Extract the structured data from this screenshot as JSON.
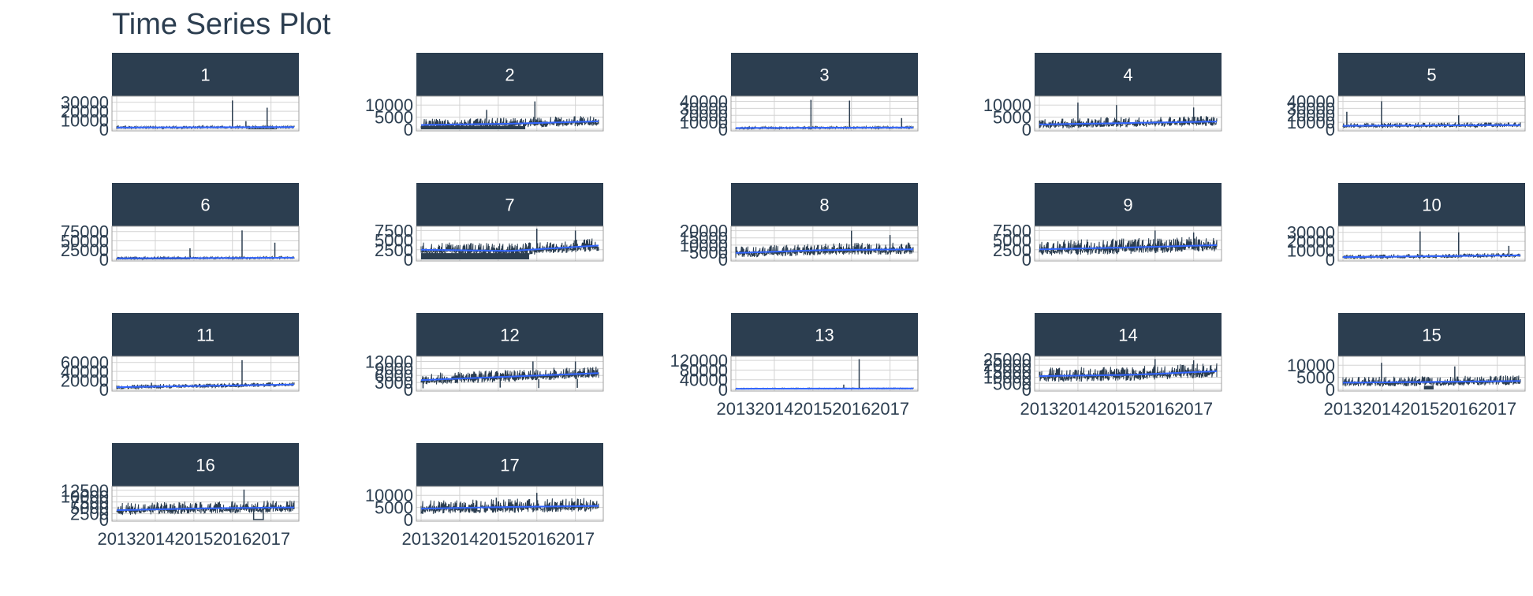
{
  "chart_data": {
    "type": "line",
    "title": "Time Series Plot",
    "xlabel": "",
    "ylabel": "",
    "grid": true,
    "x_tick_labels": [
      "2013",
      "2014",
      "2015",
      "2016",
      "2017"
    ],
    "x_range": [
      2013.0,
      2017.6
    ],
    "colors": {
      "strip": "#2c3e50",
      "series": "#2c3e50",
      "trend": "#3366ff",
      "grid": "#d3d3d3"
    },
    "panels": [
      {
        "label": "1",
        "yticks": [
          "0",
          "10000",
          "20000",
          "30000"
        ],
        "ylim": [
          0,
          35000
        ],
        "level": 1500,
        "trend": [
          2000,
          2200,
          2400
        ],
        "noise": 1200,
        "spikes": [
          [
            2016.0,
            32000
          ],
          [
            2016.9,
            24000
          ],
          [
            2016.35,
            9000
          ]
        ],
        "baseline_block": [
          2016.4,
          2017.15
        ]
      },
      {
        "label": "2",
        "yticks": [
          "0",
          "5000",
          "10000"
        ],
        "ylim": [
          0,
          13000
        ],
        "level": 2200,
        "trend": [
          1800,
          2300,
          3300
        ],
        "noise": 1800,
        "spikes": [
          [
            2014.7,
            8000
          ],
          [
            2015.95,
            11500
          ]
        ],
        "baseline_block": [
          2013.0,
          2015.7
        ]
      },
      {
        "label": "3",
        "yticks": [
          "0",
          "10000",
          "20000",
          "30000",
          "40000"
        ],
        "ylim": [
          0,
          45000
        ],
        "level": 1800,
        "trend": [
          1800,
          2200,
          2500
        ],
        "noise": 1300,
        "spikes": [
          [
            2014.95,
            42000
          ],
          [
            2015.95,
            41000
          ],
          [
            2017.3,
            16000
          ]
        ]
      },
      {
        "label": "4",
        "yticks": [
          "0",
          "5000",
          "10000"
        ],
        "ylim": [
          0,
          13000
        ],
        "level": 2400,
        "trend": [
          2000,
          2600,
          3200
        ],
        "noise": 1800,
        "spikes": [
          [
            2014.0,
            11000
          ],
          [
            2015.0,
            10000
          ],
          [
            2017.0,
            9000
          ]
        ]
      },
      {
        "label": "5",
        "yticks": [
          "0",
          "10000",
          "20000",
          "30000",
          "40000"
        ],
        "ylim": [
          0,
          45000
        ],
        "level": 5000,
        "trend": [
          5000,
          5500,
          6000
        ],
        "noise": 3000,
        "spikes": [
          [
            2014.0,
            40000
          ],
          [
            2013.1,
            25000
          ],
          [
            2016.0,
            20000
          ]
        ]
      },
      {
        "label": "6",
        "yticks": [
          "0",
          "25000",
          "50000",
          "75000"
        ],
        "ylim": [
          0,
          85000
        ],
        "level": 3000,
        "trend": [
          3000,
          3500,
          4500
        ],
        "noise": 2500,
        "spikes": [
          [
            2016.25,
            78000
          ],
          [
            2017.1,
            45000
          ],
          [
            2014.9,
            30000
          ]
        ],
        "baseline_block": [
          2013.0,
          2014.9
        ]
      },
      {
        "label": "7",
        "yticks": [
          "0",
          "2500",
          "5000",
          "7500"
        ],
        "ylim": [
          0,
          8200
        ],
        "level": 2700,
        "trend": [
          2500,
          2200,
          3600
        ],
        "noise": 1400,
        "spikes": [
          [
            2016.0,
            8000
          ],
          [
            2017.0,
            7500
          ]
        ],
        "baseline_block": [
          2013.0,
          2015.8
        ]
      },
      {
        "label": "8",
        "yticks": [
          "0",
          "5000",
          "10000",
          "15000",
          "20000"
        ],
        "ylim": [
          0,
          22000
        ],
        "level": 5500,
        "trend": [
          4500,
          6500,
          7000
        ],
        "noise": 3500,
        "spikes": [
          [
            2016.0,
            20000
          ],
          [
            2017.0,
            17000
          ]
        ]
      },
      {
        "label": "9",
        "yticks": [
          "0",
          "2500",
          "5000",
          "7500"
        ],
        "ylim": [
          0,
          8200
        ],
        "level": 2700,
        "trend": [
          2600,
          3100,
          3700
        ],
        "noise": 1700,
        "spikes": [
          [
            2016.0,
            7500
          ],
          [
            2017.0,
            7000
          ]
        ]
      },
      {
        "label": "10",
        "yticks": [
          "0",
          "10000",
          "20000",
          "30000"
        ],
        "ylim": [
          0,
          35000
        ],
        "level": 2500,
        "trend": [
          2500,
          3500,
          4500
        ],
        "noise": 2000,
        "spikes": [
          [
            2015.0,
            31000
          ],
          [
            2016.0,
            30000
          ],
          [
            2017.3,
            15000
          ]
        ]
      },
      {
        "label": "11",
        "yticks": [
          "0",
          "20000",
          "40000",
          "60000"
        ],
        "ylim": [
          0,
          70000
        ],
        "level": 6000,
        "trend": [
          5000,
          8000,
          11000
        ],
        "noise": 4000,
        "spikes": [
          [
            2016.25,
            65000
          ],
          [
            2013.9,
            15000
          ]
        ]
      },
      {
        "label": "12",
        "yticks": [
          "0",
          "3000",
          "6000",
          "9000",
          "12000"
        ],
        "ylim": [
          0,
          13500
        ],
        "level": 4500,
        "trend": [
          4000,
          5500,
          7000
        ],
        "noise": 2200,
        "spikes": [
          [
            2015.9,
            12000
          ],
          [
            2017.0,
            12000
          ]
        ],
        "dips": [
          [
            2013.05,
            500
          ],
          [
            2015.05,
            800
          ],
          [
            2016.05,
            600
          ],
          [
            2017.05,
            700
          ]
        ]
      },
      {
        "label": "13",
        "yticks": [
          "0",
          "40000",
          "80000",
          "120000"
        ],
        "ylim": [
          0,
          130000
        ],
        "level": 3000,
        "trend": [
          3000,
          3500,
          4000
        ],
        "noise": 1500,
        "spikes": [
          [
            2016.2,
            125000
          ],
          [
            2015.8,
            20000
          ]
        ]
      },
      {
        "label": "14",
        "yticks": [
          "0",
          "5000",
          "10000",
          "15000",
          "20000",
          "25000"
        ],
        "ylim": [
          0,
          26000
        ],
        "level": 12000,
        "trend": [
          11000,
          12000,
          15000
        ],
        "noise": 5000,
        "spikes": [
          [
            2016.0,
            25000
          ],
          [
            2017.0,
            24000
          ]
        ]
      },
      {
        "label": "15",
        "yticks": [
          "0",
          "5000",
          "10000"
        ],
        "ylim": [
          0,
          13000
        ],
        "level": 3000,
        "trend": [
          2800,
          3100,
          3500
        ],
        "noise": 1700,
        "spikes": [
          [
            2014.0,
            11000
          ],
          [
            2015.9,
            9500
          ]
        ],
        "dark_block": [
          2015.1,
          2015.35
        ]
      },
      {
        "label": "16",
        "yticks": [
          "0",
          "2500",
          "5000",
          "7500",
          "10000",
          "12500"
        ],
        "ylim": [
          0,
          13500
        ],
        "level": 4500,
        "trend": [
          4000,
          4800,
          5200
        ],
        "noise": 2200,
        "spikes": [
          [
            2016.3,
            12800
          ]
        ],
        "drop_block": [
          2016.55,
          2016.8
        ]
      },
      {
        "label": "17",
        "yticks": [
          "0",
          "5000",
          "10000"
        ],
        "ylim": [
          0,
          13000
        ],
        "level": 4500,
        "trend": [
          4500,
          5200,
          5600
        ],
        "noise": 2400,
        "spikes": [
          [
            2016.0,
            11000
          ],
          [
            2014.95,
            9000
          ]
        ]
      }
    ]
  }
}
